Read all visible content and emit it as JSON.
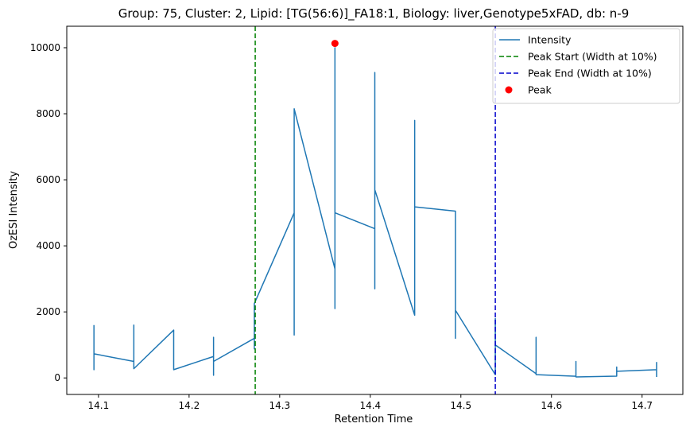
{
  "chart_data": {
    "type": "line",
    "title": "Group: 75, Cluster: 2, Lipid: [TG(56:6)]_FA18:1, Biology: liver,Genotype5xFAD, db: n-9",
    "xlabel": "Retention Time",
    "ylabel": "OzESI Intensity",
    "xlim": [
      14.065,
      14.745
    ],
    "ylim": [
      -500,
      10650
    ],
    "xticks": [
      14.1,
      14.2,
      14.3,
      14.4,
      14.5,
      14.6,
      14.7
    ],
    "xtick_labels": [
      "14.1",
      "14.2",
      "14.3",
      "14.4",
      "14.5",
      "14.6",
      "14.7"
    ],
    "yticks": [
      0,
      2000,
      4000,
      6000,
      8000,
      10000
    ],
    "ytick_labels": [
      "0",
      "2000",
      "4000",
      "6000",
      "8000",
      "10000"
    ],
    "grid": false,
    "legend_position": "top-right",
    "series": [
      {
        "name": "Intensity",
        "color": "#1f77b4",
        "style": "solid",
        "x": [
          14.095,
          14.095,
          14.095,
          14.139,
          14.139,
          14.139,
          14.183,
          14.183,
          14.183,
          14.227,
          14.227,
          14.227,
          14.227,
          14.272,
          14.272,
          14.272,
          14.272,
          14.316,
          14.316,
          14.316,
          14.361,
          14.361,
          14.361,
          14.361,
          14.361,
          14.405,
          14.405,
          14.405,
          14.405,
          14.405,
          14.449,
          14.449,
          14.449,
          14.494,
          14.494,
          14.494,
          14.494,
          14.538,
          14.538,
          14.538,
          14.538,
          14.583,
          14.583,
          14.583,
          14.627,
          14.627,
          14.627,
          14.672,
          14.672,
          14.672,
          14.716,
          14.716,
          14.716
        ],
        "y": [
          1600,
          250,
          730,
          500,
          1600,
          280,
          1450,
          310,
          250,
          650,
          1230,
          80,
          500,
          1200,
          1900,
          880,
          2250,
          5000,
          1300,
          8150,
          3300,
          10000,
          2100,
          5000,
          5000,
          4520,
          9250,
          2700,
          7700,
          5700,
          1900,
          7800,
          5180,
          5050,
          1200,
          2100,
          2050,
          100,
          1800,
          600,
          1000,
          130,
          1230,
          100,
          50,
          500,
          30,
          55,
          330,
          200,
          250,
          470,
          30
        ]
      },
      {
        "name": "Peak Start (Width at 10%)",
        "color": "#008000",
        "style": "dashed",
        "x": 14.273
      },
      {
        "name": "Peak End (Width at 10%)",
        "color": "#0000cc",
        "style": "dashed",
        "x": 14.538
      },
      {
        "name": "Peak",
        "color": "#ff0000",
        "style": "point",
        "x": 14.361,
        "y": 10130
      }
    ]
  }
}
